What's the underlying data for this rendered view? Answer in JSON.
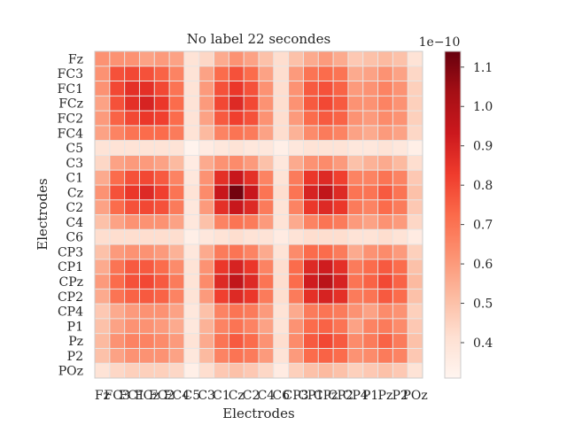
{
  "chart_data": {
    "type": "heatmap",
    "title": "No label 22 secondes",
    "xlabel": "Electrodes",
    "ylabel": "Electrodes",
    "labels": [
      "Fz",
      "FC3",
      "FC1",
      "FCz",
      "FC2",
      "FC4",
      "C5",
      "C3",
      "C1",
      "Cz",
      "C2",
      "C4",
      "C6",
      "CP3",
      "CP1",
      "CPz",
      "CP2",
      "CP4",
      "P1",
      "Pz",
      "P2",
      "POz"
    ],
    "colormap": "Reds",
    "vmin": 0.31,
    "vmax": 1.14,
    "colorbar": {
      "ticks": [
        0.4,
        0.5,
        0.6,
        0.7,
        0.8,
        0.9,
        1.0,
        1.1
      ],
      "tick_labels": [
        "0.4",
        "0.5",
        "0.6",
        "0.7",
        "0.8",
        "0.9",
        "1.0",
        "1.1"
      ],
      "offset_label": "1e−10"
    },
    "grid": true,
    "colors": [
      "#fff5f0",
      "#fee0d2",
      "#fcbba1",
      "#fc9272",
      "#fb6a4a",
      "#ef3b2c",
      "#cb181d",
      "#a50f15",
      "#67000d"
    ],
    "cells": [
      [
        0.62,
        0.62,
        0.62,
        0.58,
        0.6,
        0.58,
        0.4,
        0.44,
        0.56,
        0.62,
        0.58,
        0.5,
        0.42,
        0.5,
        0.56,
        0.6,
        0.56,
        0.48,
        0.5,
        0.52,
        0.5,
        0.4
      ],
      [
        0.62,
        0.78,
        0.8,
        0.78,
        0.74,
        0.66,
        0.4,
        0.58,
        0.72,
        0.78,
        0.72,
        0.58,
        0.42,
        0.6,
        0.7,
        0.72,
        0.7,
        0.56,
        0.58,
        0.62,
        0.58,
        0.44
      ],
      [
        0.62,
        0.8,
        0.86,
        0.86,
        0.8,
        0.7,
        0.4,
        0.6,
        0.78,
        0.84,
        0.78,
        0.62,
        0.42,
        0.62,
        0.76,
        0.78,
        0.74,
        0.6,
        0.62,
        0.66,
        0.62,
        0.46
      ],
      [
        0.58,
        0.78,
        0.86,
        0.9,
        0.84,
        0.72,
        0.4,
        0.6,
        0.8,
        0.88,
        0.8,
        0.62,
        0.42,
        0.62,
        0.76,
        0.8,
        0.76,
        0.62,
        0.62,
        0.66,
        0.62,
        0.46
      ],
      [
        0.6,
        0.74,
        0.8,
        0.84,
        0.82,
        0.72,
        0.4,
        0.58,
        0.76,
        0.82,
        0.78,
        0.62,
        0.42,
        0.6,
        0.72,
        0.76,
        0.74,
        0.62,
        0.6,
        0.64,
        0.62,
        0.46
      ],
      [
        0.58,
        0.66,
        0.7,
        0.72,
        0.72,
        0.68,
        0.4,
        0.52,
        0.66,
        0.7,
        0.68,
        0.58,
        0.42,
        0.54,
        0.64,
        0.68,
        0.66,
        0.58,
        0.56,
        0.6,
        0.58,
        0.44
      ],
      [
        0.4,
        0.4,
        0.4,
        0.4,
        0.4,
        0.4,
        0.32,
        0.36,
        0.38,
        0.4,
        0.38,
        0.38,
        0.34,
        0.38,
        0.4,
        0.4,
        0.4,
        0.38,
        0.38,
        0.4,
        0.38,
        0.34
      ],
      [
        0.44,
        0.58,
        0.6,
        0.6,
        0.58,
        0.52,
        0.36,
        0.56,
        0.62,
        0.64,
        0.6,
        0.5,
        0.38,
        0.56,
        0.62,
        0.64,
        0.6,
        0.5,
        0.54,
        0.56,
        0.52,
        0.42
      ],
      [
        0.56,
        0.72,
        0.78,
        0.8,
        0.76,
        0.66,
        0.38,
        0.62,
        0.86,
        0.94,
        0.86,
        0.66,
        0.4,
        0.68,
        0.84,
        0.88,
        0.82,
        0.66,
        0.66,
        0.7,
        0.66,
        0.48
      ],
      [
        0.62,
        0.78,
        0.84,
        0.88,
        0.82,
        0.7,
        0.4,
        0.64,
        0.94,
        1.12,
        0.94,
        0.7,
        0.42,
        0.7,
        0.9,
        0.96,
        0.88,
        0.7,
        0.7,
        0.76,
        0.7,
        0.5
      ],
      [
        0.58,
        0.72,
        0.78,
        0.8,
        0.78,
        0.68,
        0.38,
        0.6,
        0.86,
        0.94,
        0.88,
        0.68,
        0.4,
        0.66,
        0.84,
        0.88,
        0.84,
        0.68,
        0.66,
        0.72,
        0.68,
        0.48
      ],
      [
        0.5,
        0.58,
        0.62,
        0.62,
        0.62,
        0.58,
        0.38,
        0.5,
        0.66,
        0.7,
        0.68,
        0.6,
        0.4,
        0.56,
        0.66,
        0.7,
        0.68,
        0.6,
        0.58,
        0.62,
        0.6,
        0.44
      ],
      [
        0.42,
        0.42,
        0.42,
        0.42,
        0.42,
        0.42,
        0.34,
        0.38,
        0.4,
        0.42,
        0.4,
        0.4,
        0.36,
        0.4,
        0.42,
        0.42,
        0.42,
        0.4,
        0.4,
        0.42,
        0.4,
        0.36
      ],
      [
        0.5,
        0.6,
        0.62,
        0.62,
        0.6,
        0.54,
        0.38,
        0.56,
        0.68,
        0.7,
        0.66,
        0.56,
        0.4,
        0.64,
        0.72,
        0.72,
        0.68,
        0.56,
        0.62,
        0.64,
        0.6,
        0.46
      ],
      [
        0.56,
        0.7,
        0.76,
        0.76,
        0.72,
        0.64,
        0.4,
        0.62,
        0.84,
        0.9,
        0.84,
        0.66,
        0.42,
        0.72,
        0.88,
        0.92,
        0.86,
        0.68,
        0.72,
        0.76,
        0.72,
        0.5
      ],
      [
        0.6,
        0.72,
        0.78,
        0.8,
        0.76,
        0.68,
        0.4,
        0.64,
        0.88,
        0.96,
        0.88,
        0.7,
        0.42,
        0.72,
        0.92,
        0.98,
        0.9,
        0.7,
        0.74,
        0.8,
        0.74,
        0.52
      ],
      [
        0.56,
        0.7,
        0.74,
        0.76,
        0.74,
        0.66,
        0.4,
        0.6,
        0.82,
        0.88,
        0.84,
        0.68,
        0.42,
        0.68,
        0.86,
        0.9,
        0.86,
        0.68,
        0.7,
        0.76,
        0.72,
        0.5
      ],
      [
        0.48,
        0.56,
        0.6,
        0.62,
        0.62,
        0.58,
        0.38,
        0.5,
        0.66,
        0.7,
        0.68,
        0.6,
        0.4,
        0.56,
        0.68,
        0.7,
        0.68,
        0.62,
        0.58,
        0.64,
        0.62,
        0.46
      ],
      [
        0.5,
        0.58,
        0.62,
        0.62,
        0.6,
        0.56,
        0.38,
        0.54,
        0.66,
        0.7,
        0.66,
        0.58,
        0.4,
        0.62,
        0.72,
        0.74,
        0.7,
        0.58,
        0.66,
        0.68,
        0.64,
        0.48
      ],
      [
        0.52,
        0.62,
        0.66,
        0.66,
        0.64,
        0.6,
        0.4,
        0.56,
        0.7,
        0.76,
        0.72,
        0.62,
        0.42,
        0.64,
        0.76,
        0.8,
        0.76,
        0.64,
        0.68,
        0.74,
        0.68,
        0.5
      ],
      [
        0.5,
        0.58,
        0.62,
        0.62,
        0.62,
        0.58,
        0.38,
        0.52,
        0.66,
        0.7,
        0.68,
        0.6,
        0.4,
        0.6,
        0.72,
        0.74,
        0.72,
        0.62,
        0.64,
        0.68,
        0.66,
        0.48
      ],
      [
        0.4,
        0.44,
        0.46,
        0.46,
        0.46,
        0.44,
        0.34,
        0.42,
        0.48,
        0.5,
        0.48,
        0.44,
        0.36,
        0.46,
        0.5,
        0.52,
        0.5,
        0.46,
        0.48,
        0.5,
        0.48,
        0.4
      ]
    ]
  }
}
